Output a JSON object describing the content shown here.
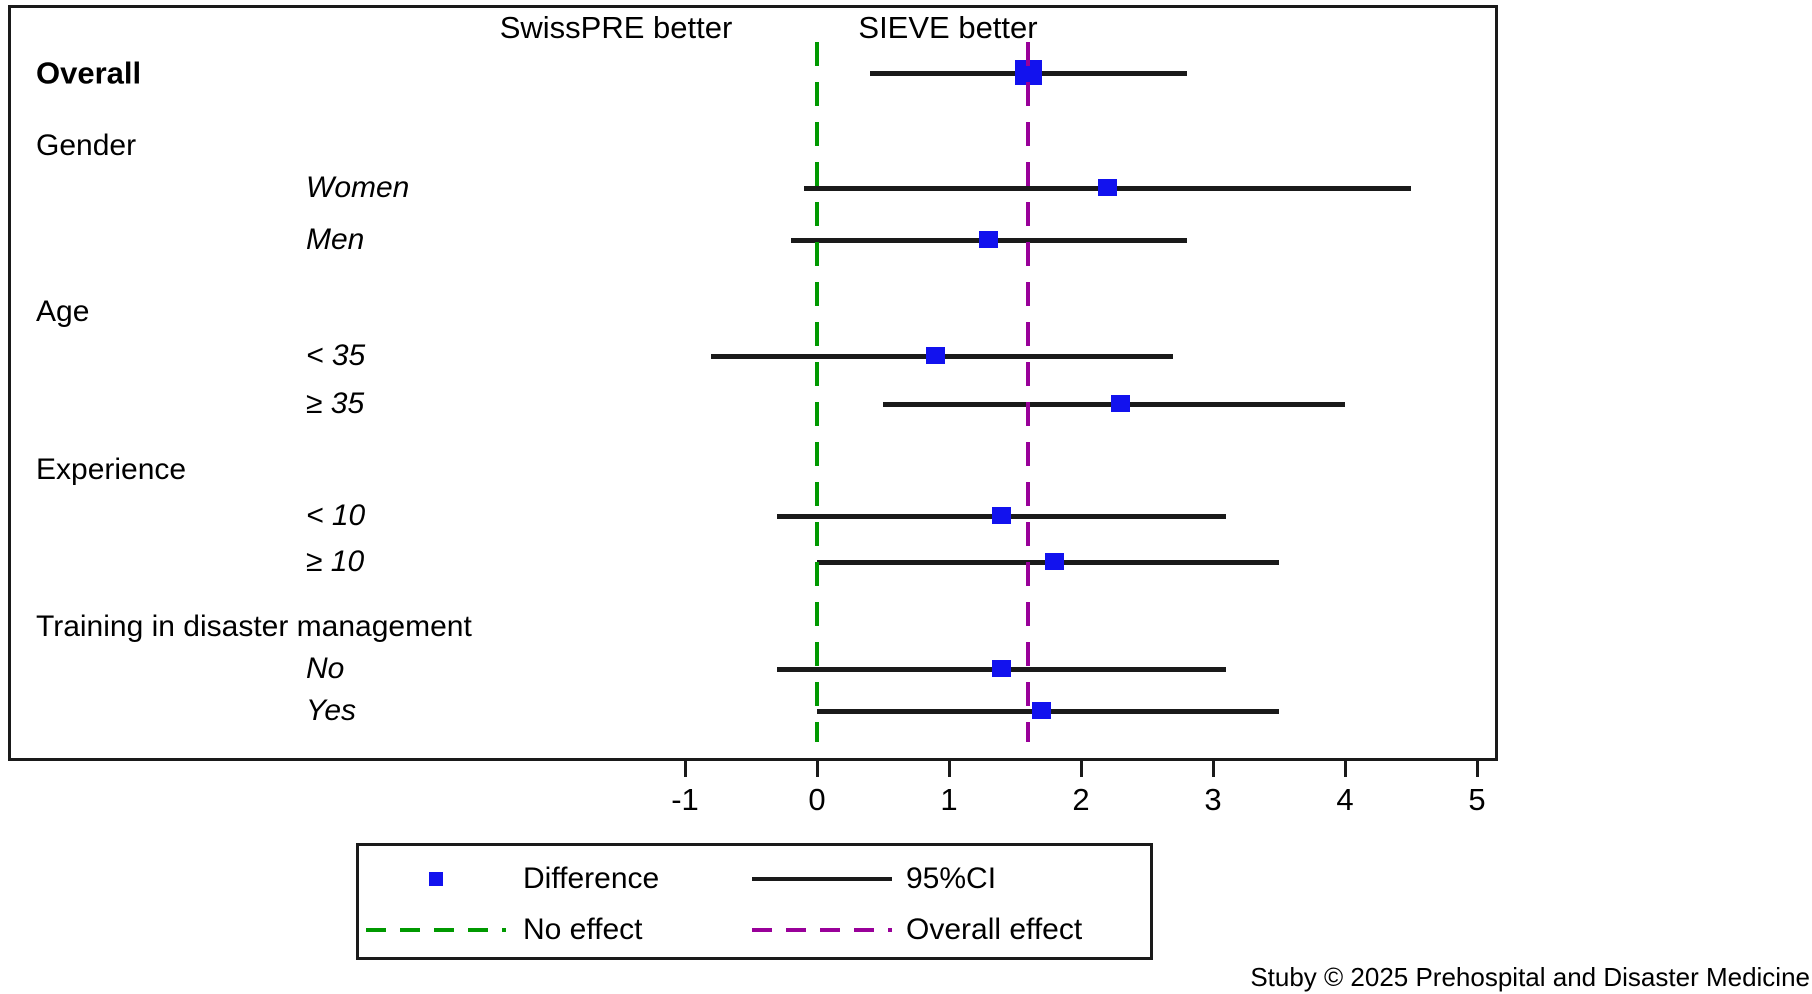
{
  "figure": {
    "top_left_header": "SwissPRE better",
    "top_right_header": "SIEVE better",
    "attribution": "Stuby © 2025 Prehospital and Disaster Medicine"
  },
  "chart_data": {
    "type": "forest",
    "title": "",
    "xlabel": "",
    "x_axis": {
      "min": -1,
      "max": 5,
      "ticks": [
        -1,
        0,
        1,
        2,
        3,
        4,
        5
      ]
    },
    "reference_lines": [
      {
        "name": "no-effect-line",
        "label": "No effect",
        "value": 0,
        "color": "#009900",
        "style": "dashed"
      },
      {
        "name": "overall-effect-line",
        "label": "Overall effect",
        "value": 1.6,
        "color": "#990099",
        "style": "dashed"
      }
    ],
    "rows": [
      {
        "kind": "data",
        "label": "Overall",
        "bold": true,
        "indent": false,
        "italic": false,
        "estimate": 1.6,
        "ci_low": 0.4,
        "ci_high": 2.8,
        "marker": "large"
      },
      {
        "kind": "header",
        "label": "Gender"
      },
      {
        "kind": "data",
        "label": "Women",
        "bold": false,
        "indent": true,
        "italic": true,
        "estimate": 2.2,
        "ci_low": -0.1,
        "ci_high": 4.5,
        "marker": "normal"
      },
      {
        "kind": "data",
        "label": "Men",
        "bold": false,
        "indent": true,
        "italic": true,
        "estimate": 1.3,
        "ci_low": -0.2,
        "ci_high": 2.8,
        "marker": "normal"
      },
      {
        "kind": "header",
        "label": "Age"
      },
      {
        "kind": "data",
        "label": "< 35",
        "bold": false,
        "indent": true,
        "italic": true,
        "estimate": 0.9,
        "ci_low": -0.8,
        "ci_high": 2.7,
        "marker": "normal"
      },
      {
        "kind": "data",
        "label": "≥ 35",
        "bold": false,
        "indent": true,
        "italic": true,
        "estimate": 2.3,
        "ci_low": 0.5,
        "ci_high": 4.0,
        "marker": "normal"
      },
      {
        "kind": "header",
        "label": "Experience"
      },
      {
        "kind": "data",
        "label": "< 10",
        "bold": false,
        "indent": true,
        "italic": true,
        "estimate": 1.4,
        "ci_low": -0.3,
        "ci_high": 3.1,
        "marker": "normal"
      },
      {
        "kind": "data",
        "label": "≥ 10",
        "bold": false,
        "indent": true,
        "italic": true,
        "estimate": 1.8,
        "ci_low": 0.0,
        "ci_high": 3.5,
        "marker": "normal"
      },
      {
        "kind": "header",
        "label": "Training in disaster management"
      },
      {
        "kind": "data",
        "label": "No",
        "bold": false,
        "indent": true,
        "italic": true,
        "estimate": 1.4,
        "ci_low": -0.3,
        "ci_high": 3.1,
        "marker": "normal"
      },
      {
        "kind": "data",
        "label": "Yes",
        "bold": false,
        "indent": true,
        "italic": true,
        "estimate": 1.7,
        "ci_low": 0.0,
        "ci_high": 3.5,
        "marker": "normal"
      }
    ],
    "legend": [
      {
        "label": "Difference",
        "marker": "square",
        "color": "#1212ee"
      },
      {
        "label": "95%CI",
        "marker": "solid-line",
        "color": "#1a1a1a"
      },
      {
        "label": "No effect",
        "marker": "dashed-line",
        "color": "#009900"
      },
      {
        "label": "Overall effect",
        "marker": "dashed-line",
        "color": "#990099"
      }
    ],
    "colors": {
      "marker": "#1212ee",
      "ci_line": "#1a1a1a",
      "no_effect": "#009900",
      "overall_effect": "#990099"
    },
    "legend_position": "bottom"
  }
}
